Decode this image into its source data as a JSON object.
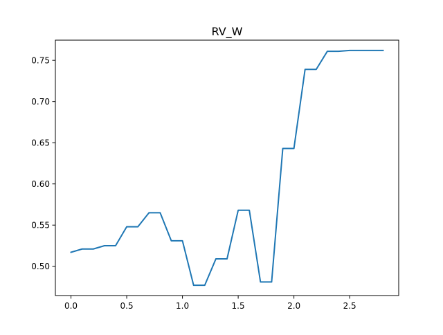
{
  "chart_data": {
    "type": "line",
    "title": "RV_W",
    "xlabel": "",
    "ylabel": "",
    "xlim": [
      -0.14,
      2.94
    ],
    "ylim": [
      0.4645,
      0.7745
    ],
    "xticks": [
      0.0,
      0.5,
      1.0,
      1.5,
      2.0,
      2.5
    ],
    "xtick_labels": [
      "0.0",
      "0.5",
      "1.0",
      "1.5",
      "2.0",
      "2.5"
    ],
    "yticks": [
      0.5,
      0.55,
      0.6,
      0.65,
      0.7,
      0.75
    ],
    "ytick_labels": [
      "0.50",
      "0.55",
      "0.60",
      "0.65",
      "0.70",
      "0.75"
    ],
    "grid": false,
    "series": [
      {
        "color": "#1f77b4",
        "x": [
          0.0,
          0.1,
          0.2,
          0.3,
          0.4,
          0.5,
          0.6,
          0.7,
          0.8,
          0.9,
          1.0,
          1.1,
          1.2,
          1.3,
          1.4,
          1.5,
          1.6,
          1.7,
          1.8,
          1.9,
          2.0,
          2.1,
          2.2,
          2.3,
          2.4,
          2.5,
          2.6,
          2.7,
          2.8
        ],
        "y": [
          0.517,
          0.521,
          0.521,
          0.525,
          0.525,
          0.548,
          0.548,
          0.565,
          0.565,
          0.531,
          0.531,
          0.477,
          0.477,
          0.509,
          0.509,
          0.568,
          0.568,
          0.481,
          0.481,
          0.643,
          0.643,
          0.739,
          0.739,
          0.761,
          0.761,
          0.762,
          0.762,
          0.762,
          0.762
        ]
      }
    ]
  }
}
